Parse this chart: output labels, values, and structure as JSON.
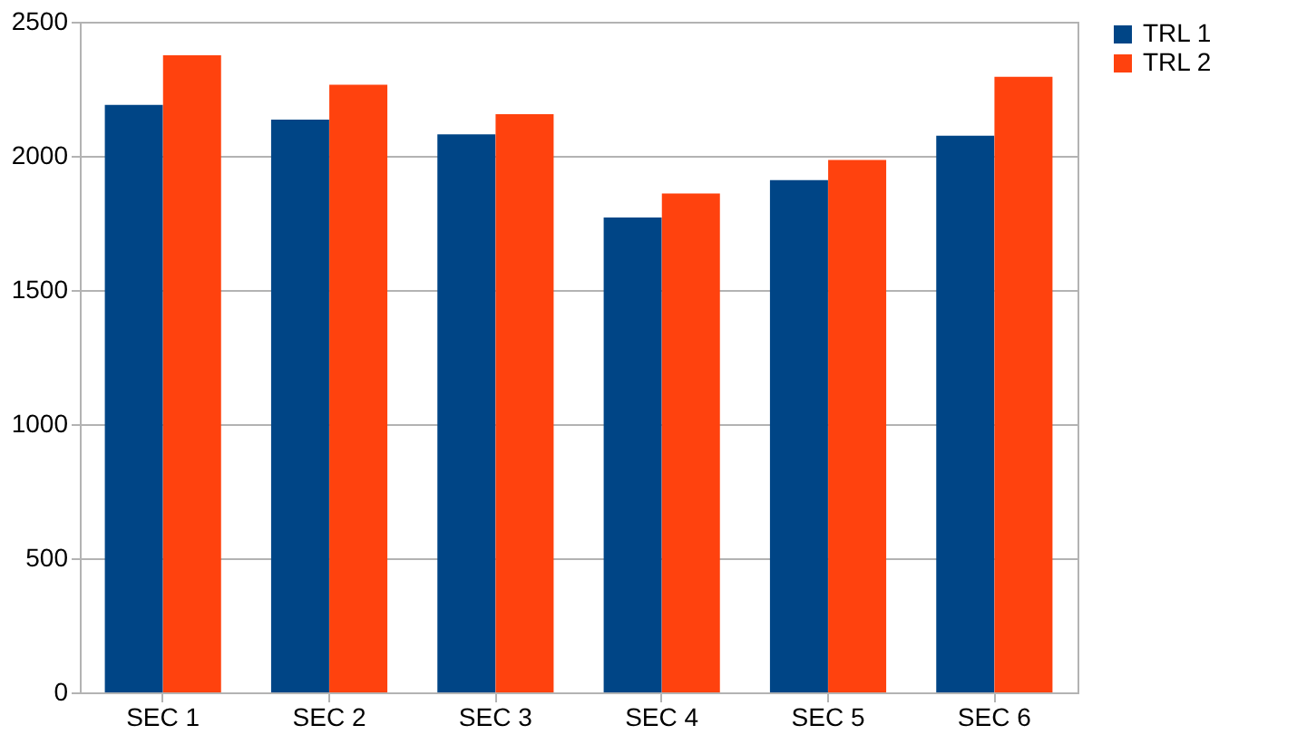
{
  "chart_data": {
    "type": "bar",
    "categories": [
      "SEC 1",
      "SEC 2",
      "SEC 3",
      "SEC 4",
      "SEC 5",
      "SEC 6"
    ],
    "series": [
      {
        "name": "TRL 1",
        "color": "#004586",
        "values": [
          2190,
          2135,
          2080,
          1770,
          1910,
          2075
        ]
      },
      {
        "name": "TRL 2",
        "color": "#ff420e",
        "values": [
          2375,
          2265,
          2155,
          1860,
          1985,
          2295
        ]
      }
    ],
    "ylim": [
      0,
      2500
    ],
    "yticks": [
      0,
      500,
      1000,
      1500,
      2000,
      2500
    ],
    "grid": "y",
    "legend": "right"
  }
}
